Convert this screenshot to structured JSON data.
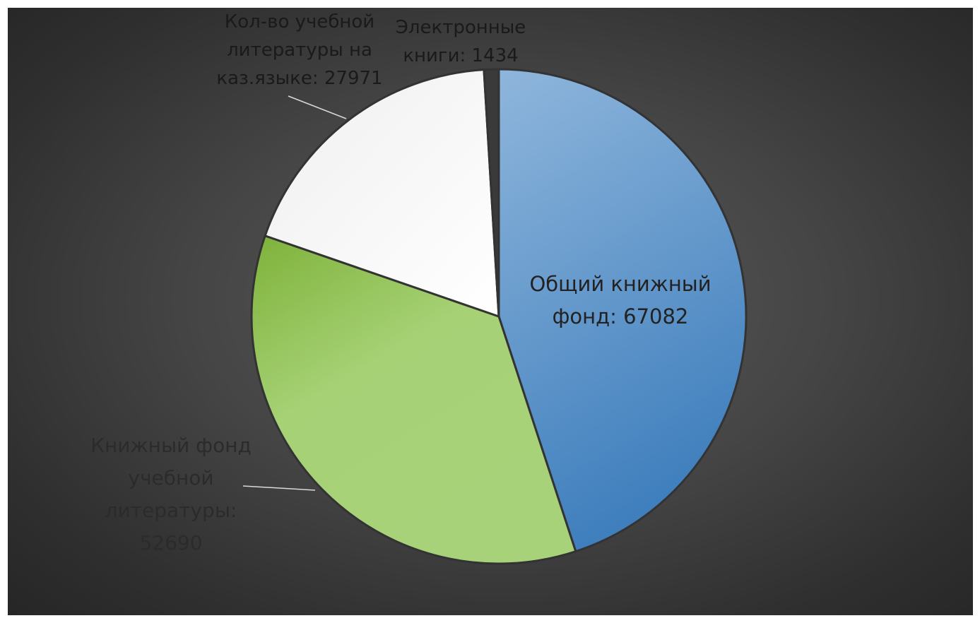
{
  "chart_data": {
    "type": "pie",
    "title": "",
    "slices": [
      {
        "label_lines": [
          "Общий книжный",
          "фонд: 67082"
        ],
        "value": 67082,
        "color": "#6fa0d2"
      },
      {
        "label_lines": [
          "Книжный фонд",
          "учебной",
          "литературы:",
          "52690"
        ],
        "value": 52690,
        "color": "#9bcb63"
      },
      {
        "label_lines": [
          "Кол-во учебной",
          "литературы на",
          "каз.языке: 27971"
        ],
        "value": 27971,
        "color": "#ffffff"
      },
      {
        "label_lines": [
          "Электронные",
          "книги: 1434"
        ],
        "value": 1434,
        "color": "#3a3a3a"
      }
    ],
    "legend": "none",
    "data_labels": "category-and-value"
  }
}
